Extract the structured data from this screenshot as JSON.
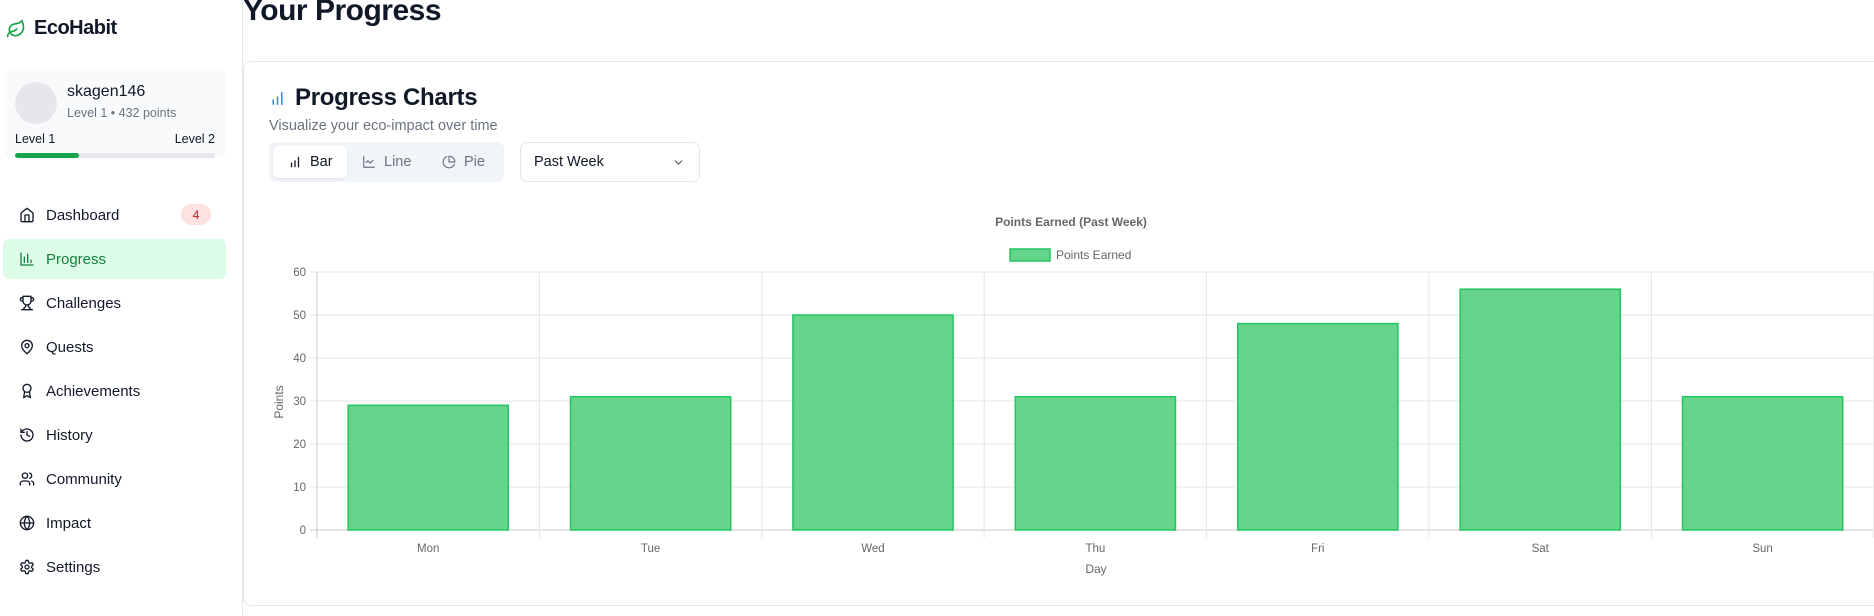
{
  "app": {
    "name": "EcoHabit"
  },
  "user": {
    "name": "skagen146",
    "subtitle": "Level 1 • 432 points",
    "level_from": "Level 1",
    "level_to": "Level 2",
    "level_progress": 0.32
  },
  "nav": [
    {
      "label": "Dashboard",
      "icon": "home-icon",
      "badge": "4"
    },
    {
      "label": "Progress",
      "icon": "bar-chart-icon",
      "active": true
    },
    {
      "label": "Challenges",
      "icon": "trophy-icon"
    },
    {
      "label": "Quests",
      "icon": "map-pin-icon"
    },
    {
      "label": "Achievements",
      "icon": "award-icon"
    },
    {
      "label": "History",
      "icon": "history-icon"
    },
    {
      "label": "Community",
      "icon": "users-icon"
    },
    {
      "label": "Impact",
      "icon": "globe-icon"
    },
    {
      "label": "Settings",
      "icon": "gear-icon"
    }
  ],
  "page": {
    "title": "Your Progress"
  },
  "card": {
    "title": "Progress Charts",
    "subtitle": "Visualize your eco-impact over time"
  },
  "chart_types": [
    {
      "label": "Bar",
      "icon": "bar-chart-icon",
      "active": true
    },
    {
      "label": "Line",
      "icon": "line-chart-icon"
    },
    {
      "label": "Pie",
      "icon": "pie-chart-icon"
    }
  ],
  "range_select": {
    "value": "Past Week"
  },
  "colors": {
    "accent": "#16a34a",
    "bar_fill": "#66d48b",
    "bar_border": "#22c55e",
    "active_nav_bg": "#dcfce7"
  },
  "chart_data": {
    "type": "bar",
    "title": "Points Earned (Past Week)",
    "xlabel": "Day",
    "ylabel": "Points",
    "categories": [
      "Mon",
      "Tue",
      "Wed",
      "Thu",
      "Fri",
      "Sat",
      "Sun"
    ],
    "series": [
      {
        "name": "Points Earned",
        "values": [
          29,
          31,
          50,
          31,
          48,
          56,
          31
        ]
      }
    ],
    "ylim": [
      0,
      60
    ],
    "yticks": [
      0,
      10,
      20,
      30,
      40,
      50,
      60
    ],
    "grid": true,
    "legend": "top-center"
  }
}
